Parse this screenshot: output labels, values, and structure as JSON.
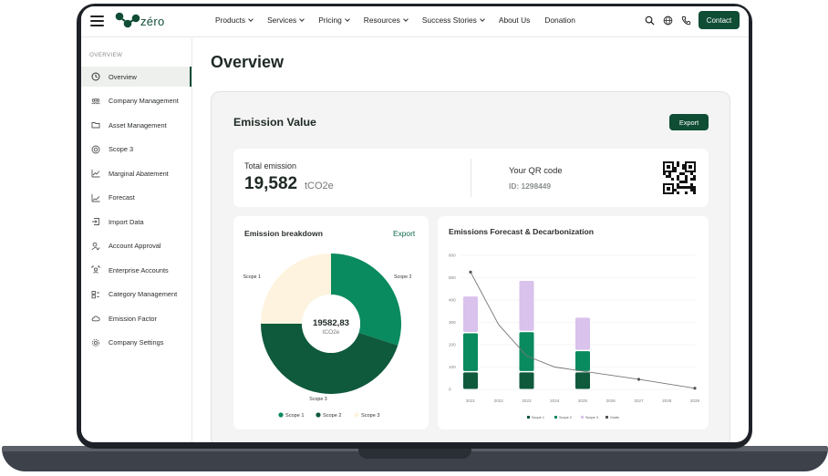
{
  "header": {
    "logo_text": "zéro",
    "nav": [
      {
        "label": "Products",
        "dropdown": true
      },
      {
        "label": "Services",
        "dropdown": true
      },
      {
        "label": "Pricing",
        "dropdown": true
      },
      {
        "label": "Resources",
        "dropdown": true
      },
      {
        "label": "Success Stories",
        "dropdown": true
      },
      {
        "label": "About Us",
        "dropdown": false
      },
      {
        "label": "Donation",
        "dropdown": false
      }
    ],
    "contact_label": "Contact"
  },
  "sidebar": {
    "section_label": "OVERVIEW",
    "items": [
      {
        "label": "Overview",
        "icon": "clock-icon",
        "active": true
      },
      {
        "label": "Company Management",
        "icon": "users-icon"
      },
      {
        "label": "Asset Management",
        "icon": "folder-icon"
      },
      {
        "label": "Scope 3",
        "icon": "target-icon"
      },
      {
        "label": "Marginal Abatement",
        "icon": "line-chart-icon"
      },
      {
        "label": "Forecast",
        "icon": "trend-icon"
      },
      {
        "label": "Import Data",
        "icon": "import-icon"
      },
      {
        "label": "Account Approval",
        "icon": "user-check-icon"
      },
      {
        "label": "Enterprise Accounts",
        "icon": "enterprise-icon"
      },
      {
        "label": "Category Management",
        "icon": "category-icon"
      },
      {
        "label": "Emission Factor",
        "icon": "cloud-icon"
      },
      {
        "label": "Company Settings",
        "icon": "gear-icon"
      }
    ]
  },
  "main": {
    "title": "Overview",
    "panel_title": "Emission Value",
    "export_label": "Export",
    "total": {
      "label": "Total emission",
      "value": "19,582",
      "unit": "tCO2e"
    },
    "qr": {
      "label": "Your QR code",
      "id": "ID: 1298449"
    },
    "breakdown": {
      "title": "Emission breakdown",
      "export_label": "Export"
    },
    "forecast": {
      "title": "Emissions Forecast & Decarbonization"
    }
  },
  "colors": {
    "brand": "#0f4d35",
    "scope1": "#0a8a5f",
    "scope2": "#0f5a3c",
    "scope3": "#fdf3df",
    "offset": "#d9c2ec",
    "scope3_bar": "#0a8a5f"
  },
  "chart_data": [
    {
      "type": "pie",
      "title": "Emission breakdown",
      "center_value": "19582,83",
      "center_unit": "tCO2e",
      "labels": [
        "Scope 1",
        "Scope 2",
        "Scope 3"
      ],
      "values": [
        30,
        45,
        25
      ],
      "legend": [
        "Scope 1",
        "Scope 2",
        "Scope 3"
      ],
      "legend_position": "bottom"
    },
    {
      "type": "bar",
      "title": "Emissions Forecast & Decarbonization",
      "categories": [
        "2021",
        "2022",
        "2023",
        "2024",
        "2025",
        "2026",
        "2027",
        "2028",
        "2029"
      ],
      "ylim": [
        0,
        600
      ],
      "yticks": [
        "0",
        "100",
        "200",
        "300",
        "400",
        "500",
        "600"
      ],
      "series": [
        {
          "name": "Scope 1",
          "values": [
            80,
            null,
            80,
            null,
            80,
            null,
            null,
            null,
            null
          ]
        },
        {
          "name": "Scope 2",
          "values": [
            175,
            null,
            180,
            null,
            95,
            null,
            null,
            null,
            null
          ]
        },
        {
          "name": "Scope 3",
          "values": [
            165,
            null,
            230,
            null,
            150,
            null,
            null,
            null,
            null
          ]
        }
      ],
      "line": {
        "name": "Goals",
        "x": [
          "2021",
          "2022",
          "2023",
          "2024",
          "2027",
          "2029"
        ],
        "values": [
          525,
          290,
          150,
          100,
          45,
          5
        ]
      },
      "legend": [
        "Scope 1",
        "Scope 2",
        "Scope 3",
        "Goals"
      ],
      "legend_position": "bottom",
      "grid": true
    }
  ]
}
